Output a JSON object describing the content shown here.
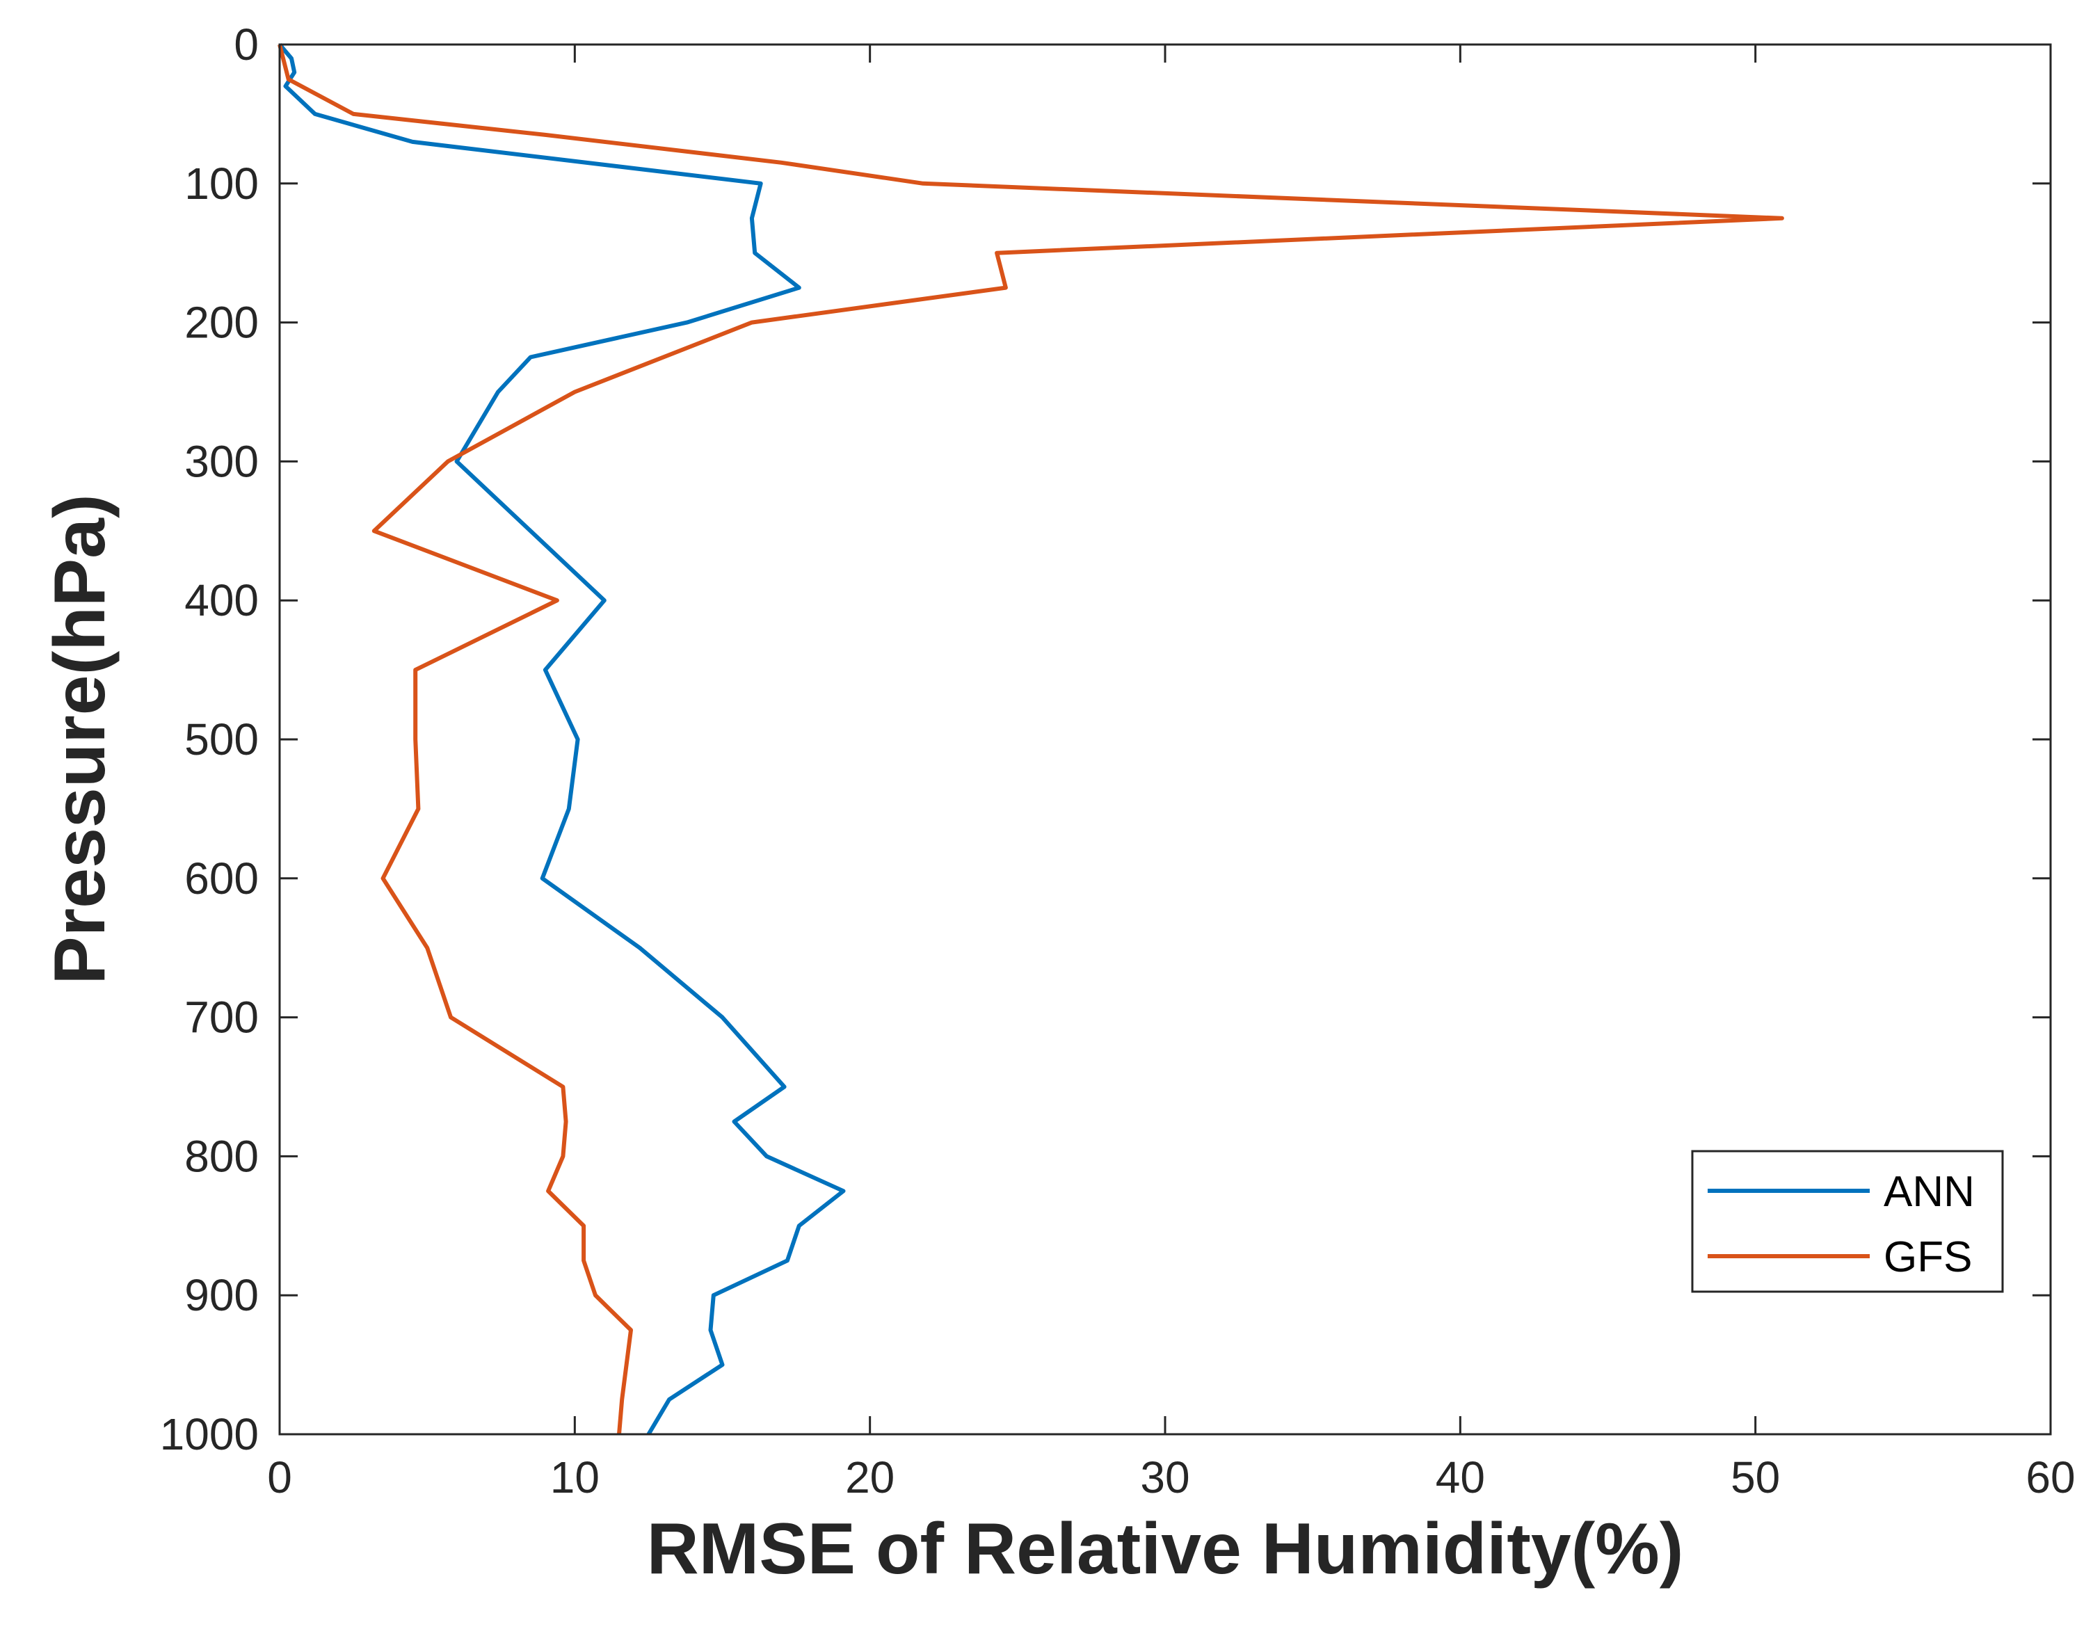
{
  "chart_data": {
    "type": "line",
    "title": "",
    "xlabel": "RMSE of Relative Humidity(%)",
    "ylabel": "Pressure(hPa)",
    "xlim": [
      0,
      60
    ],
    "ylim": [
      0,
      1000
    ],
    "y_reversed": true,
    "x_ticks": [
      0,
      10,
      20,
      30,
      40,
      50,
      60
    ],
    "y_ticks": [
      0,
      100,
      200,
      300,
      400,
      500,
      600,
      700,
      800,
      900,
      1000
    ],
    "grid": false,
    "legend_position": "bottom-right",
    "series": [
      {
        "name": "ANN",
        "color": "#0072BD",
        "points": [
          [
            0,
            0
          ],
          [
            0.4,
            10
          ],
          [
            0.5,
            20
          ],
          [
            0.2,
            30
          ],
          [
            1.2,
            50
          ],
          [
            4.5,
            70
          ],
          [
            16.3,
            100
          ],
          [
            16.0,
            125
          ],
          [
            16.1,
            150
          ],
          [
            17.6,
            175
          ],
          [
            13.8,
            200
          ],
          [
            8.5,
            225
          ],
          [
            7.4,
            250
          ],
          [
            6.0,
            300
          ],
          [
            8.5,
            350
          ],
          [
            11.0,
            400
          ],
          [
            9.0,
            450
          ],
          [
            10.1,
            500
          ],
          [
            9.8,
            550
          ],
          [
            8.9,
            600
          ],
          [
            12.2,
            650
          ],
          [
            15.0,
            700
          ],
          [
            17.1,
            750
          ],
          [
            15.4,
            775
          ],
          [
            16.5,
            800
          ],
          [
            19.1,
            825
          ],
          [
            17.6,
            850
          ],
          [
            17.2,
            875
          ],
          [
            14.7,
            900
          ],
          [
            14.6,
            925
          ],
          [
            15.0,
            950
          ],
          [
            13.2,
            975
          ],
          [
            12.5,
            1000
          ]
        ]
      },
      {
        "name": "GFS",
        "color": "#D95319",
        "points": [
          [
            0,
            0
          ],
          [
            0.3,
            25
          ],
          [
            2.5,
            50
          ],
          [
            9.0,
            65
          ],
          [
            17.0,
            85
          ],
          [
            21.8,
            100
          ],
          [
            50.9,
            125
          ],
          [
            24.3,
            150
          ],
          [
            24.6,
            175
          ],
          [
            16.0,
            200
          ],
          [
            10.0,
            250
          ],
          [
            5.7,
            300
          ],
          [
            3.2,
            350
          ],
          [
            9.4,
            400
          ],
          [
            4.6,
            450
          ],
          [
            4.6,
            500
          ],
          [
            4.7,
            550
          ],
          [
            3.5,
            600
          ],
          [
            5.0,
            650
          ],
          [
            5.8,
            700
          ],
          [
            9.6,
            750
          ],
          [
            9.7,
            775
          ],
          [
            9.6,
            800
          ],
          [
            9.1,
            825
          ],
          [
            10.3,
            850
          ],
          [
            10.3,
            875
          ],
          [
            10.7,
            900
          ],
          [
            11.9,
            925
          ],
          [
            11.6,
            975
          ],
          [
            11.5,
            1000
          ]
        ]
      }
    ]
  }
}
